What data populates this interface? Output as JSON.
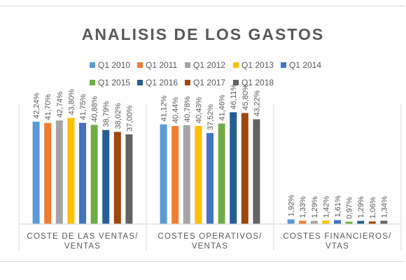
{
  "chart_data": {
    "type": "bar",
    "title": "ANALISIS DE LOS GASTOS",
    "categories": [
      "COSTE DE LAS VENTAS/ VENTAS",
      "COSTES OPERATIVOS/ VENTAS",
      "COSTES FINANCIEROS/ VTAS"
    ],
    "category_lines": [
      [
        "COSTE DE LAS VENTAS/",
        "VENTAS"
      ],
      [
        "COSTES OPERATIVOS/",
        "VENTAS"
      ],
      [
        "COSTES FINANCIEROS/",
        "VTAS"
      ]
    ],
    "series": [
      {
        "name": "Q1 2010",
        "color": "#5b9bd5",
        "values": [
          42.24,
          41.12,
          1.92
        ],
        "labels": [
          "42,24%",
          "41,12%",
          "1,92%"
        ]
      },
      {
        "name": "Q1 2011",
        "color": "#ed7d31",
        "values": [
          41.7,
          40.44,
          1.33
        ],
        "labels": [
          "41,70%",
          "40,44%",
          "1,33%"
        ]
      },
      {
        "name": "Q1 2012",
        "color": "#a5a5a5",
        "values": [
          42.74,
          40.78,
          1.29
        ],
        "labels": [
          "42,74%",
          "40,78%",
          "1,29%"
        ]
      },
      {
        "name": "Q1 2013",
        "color": "#ffc000",
        "values": [
          43.8,
          40.43,
          1.42
        ],
        "labels": [
          "43,80%",
          "40,43%",
          "1,42%"
        ]
      },
      {
        "name": "Q1 2014",
        "color": "#4472c4",
        "values": [
          41.75,
          37.52,
          1.61
        ],
        "labels": [
          "41,75%",
          "37,52%",
          "1,61%"
        ]
      },
      {
        "name": "Q1 2015",
        "color": "#70ad47",
        "values": [
          40.88,
          41.46,
          0.97
        ],
        "labels": [
          "40,88%",
          "41,46%",
          "0,97%"
        ]
      },
      {
        "name": "Q1 2016",
        "color": "#255e91",
        "values": [
          38.79,
          46.11,
          1.29
        ],
        "labels": [
          "38,79%",
          "46,11%",
          "1,29%"
        ]
      },
      {
        "name": "Q1 2017",
        "color": "#9e480e",
        "values": [
          38.02,
          45.8,
          1.06
        ],
        "labels": [
          "38,02%",
          "45,80%",
          "1,06%"
        ]
      },
      {
        "name": "Q1 2018",
        "color": "#636363",
        "values": [
          37.0,
          43.22,
          1.34
        ],
        "labels": [
          "37,00%",
          "43,22%",
          "1,34%"
        ]
      }
    ],
    "ylim": [
      0,
      52
    ],
    "legend_position": "top",
    "grid": false
  }
}
